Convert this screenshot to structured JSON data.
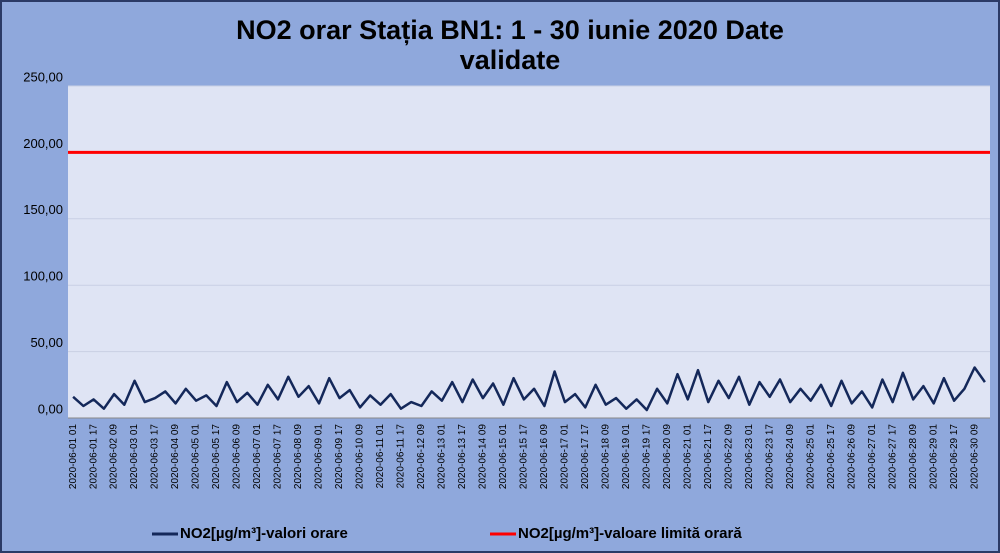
{
  "chart_data": {
    "type": "line",
    "title": "NO2 orar Stația BN1: 1 - 30 iunie 2020 Date validate",
    "title_lines": [
      "NO2 orar Stația BN1: 1 - 30 iunie 2020 Date",
      "validate"
    ],
    "categories": [
      "2020-06-01 01",
      null,
      "2020-06-01 17",
      null,
      "2020-06-02 09",
      null,
      "2020-06-03 01",
      null,
      "2020-06-03 17",
      null,
      "2020-06-04 09",
      null,
      "2020-06-05 01",
      null,
      "2020-06-05 17",
      null,
      "2020-06-06 09",
      null,
      "2020-06-07 01",
      null,
      "2020-06-07 17",
      null,
      "2020-06-08 09",
      null,
      "2020-06-09 01",
      null,
      "2020-06-09 17",
      null,
      "2020-06-10 09",
      null,
      "2020-06-11 01",
      null,
      "2020-06-11 17",
      null,
      "2020-06-12 09",
      null,
      "2020-06-13 01",
      null,
      "2020-06-13 17",
      null,
      "2020-06-14 09",
      null,
      "2020-06-15 01",
      null,
      "2020-06-15 17",
      null,
      "2020-06-16 09",
      null,
      "2020-06-17 01",
      null,
      "2020-06-17 17",
      null,
      "2020-06-18 09",
      null,
      "2020-06-19 01",
      null,
      "2020-06-19 17",
      null,
      "2020-06-20 09",
      null,
      "2020-06-21 01",
      null,
      "2020-06-21 17",
      null,
      "2020-06-22 09",
      null,
      "2020-06-23 01",
      null,
      "2020-06-23 17",
      null,
      "2020-06-24 09",
      null,
      "2020-06-25 01",
      null,
      "2020-06-25 17",
      null,
      "2020-06-26 09",
      null,
      "2020-06-27 01",
      null,
      "2020-06-27 17",
      null,
      "2020-06-28 09",
      null,
      "2020-06-29 01",
      null,
      "2020-06-29 17",
      null,
      "2020-06-30 09",
      null
    ],
    "series": [
      {
        "name": "NO2[µg/m³]-valori orare",
        "color": "#14285a",
        "values": [
          16,
          9,
          14,
          7,
          18,
          10,
          28,
          12,
          15,
          20,
          11,
          22,
          13,
          17,
          9,
          27,
          12,
          19,
          10,
          25,
          14,
          31,
          16,
          24,
          11,
          30,
          15,
          21,
          8,
          17,
          10,
          18,
          7,
          12,
          9,
          20,
          13,
          27,
          12,
          29,
          15,
          26,
          10,
          30,
          14,
          22,
          9,
          35,
          12,
          18,
          8,
          25,
          10,
          15,
          7,
          14,
          6,
          22,
          11,
          33,
          14,
          36,
          12,
          28,
          15,
          31,
          10,
          27,
          16,
          29,
          12,
          22,
          13,
          25,
          9,
          28,
          11,
          20,
          8,
          29,
          12,
          34,
          14,
          24,
          11,
          30,
          13,
          22,
          38,
          27
        ]
      }
    ],
    "hlines": [
      {
        "name": "NO2[µg/m³]-valoare limită orară",
        "color": "#ff0000",
        "value": 200
      }
    ],
    "ylim": [
      0,
      250
    ],
    "yticks": [
      {
        "value": 0,
        "label": "0,00"
      },
      {
        "value": 50,
        "label": "50,00"
      },
      {
        "value": 100,
        "label": "100,00"
      },
      {
        "value": 150,
        "label": "150,00"
      },
      {
        "value": 200,
        "label": "200,00"
      },
      {
        "value": 250,
        "label": "250,00"
      }
    ],
    "grid": true,
    "legend": "bottom"
  }
}
